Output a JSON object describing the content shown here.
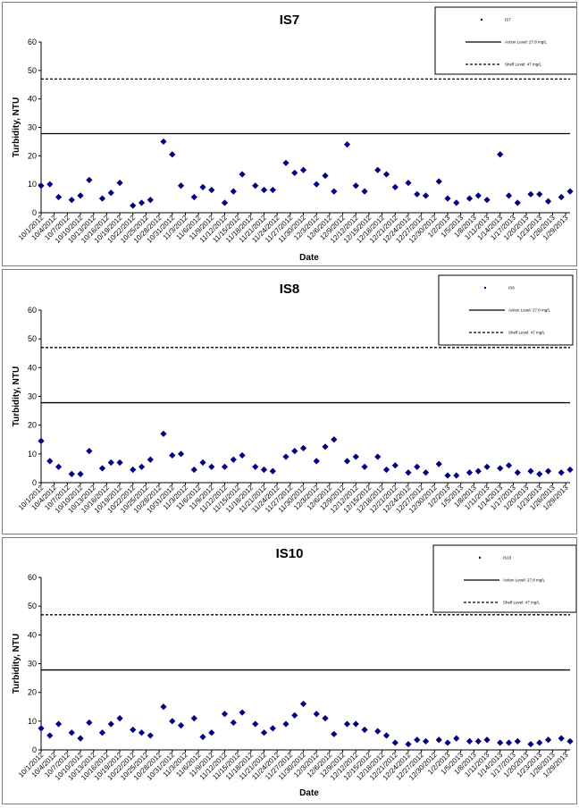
{
  "colors": {
    "marker": "#000080",
    "line": "#000000"
  },
  "dates": [
    "10/1/2012",
    "10/4/2012",
    "10/7/2012",
    "10/10/2012",
    "10/13/2012",
    "10/16/2012",
    "10/19/2012",
    "10/22/2012",
    "10/25/2012",
    "10/28/2012",
    "10/31/2012",
    "11/3/2012",
    "11/6/2012",
    "11/9/2012",
    "11/12/2012",
    "11/15/2012",
    "11/18/2012",
    "11/21/2012",
    "11/24/2012",
    "11/27/2012",
    "11/30/2012",
    "12/3/2012",
    "12/6/2012",
    "12/9/2012",
    "12/12/2012",
    "12/15/2012",
    "12/18/2012",
    "12/21/2012",
    "12/24/2012",
    "12/27/2012",
    "12/30/2012",
    "1/2/2013",
    "1/5/2013",
    "1/8/2013",
    "1/11/2013",
    "1/14/2013",
    "1/17/2013",
    "1/20/2013",
    "1/23/2013",
    "1/26/2013",
    "1/29/2013"
  ],
  "chart_data": [
    {
      "type": "scatter",
      "title": "IS7",
      "xlabel": "Date",
      "ylabel": "Turbidity, NTU",
      "ylim": [
        0,
        60
      ],
      "yticks": [
        0,
        10,
        20,
        30,
        40,
        50,
        60
      ],
      "xlim": [
        "10/1/2012",
        "1/30/2013"
      ],
      "grid": false,
      "legend_position": "top-right",
      "legend": [
        "IS7",
        "Action Level: 27.8 mg/L",
        "Shelf Level: 47 mg/L"
      ],
      "reference_lines": [
        {
          "name": "Action Level: 27.8 mg/L",
          "y": 27.8,
          "style": "solid"
        },
        {
          "name": "Shelf Level: 47 mg/L",
          "y": 47,
          "style": "dashed"
        }
      ],
      "series": [
        {
          "name": "IS7",
          "x": [
            "10/1/2012",
            "10/3/2012",
            "10/5/2012",
            "10/8/2012",
            "10/10/2012",
            "10/12/2012",
            "10/15/2012",
            "10/17/2012",
            "10/19/2012",
            "10/22/2012",
            "10/24/2012",
            "10/26/2012",
            "10/29/2012",
            "10/31/2012",
            "11/2/2012",
            "11/5/2012",
            "11/7/2012",
            "11/9/2012",
            "11/12/2012",
            "11/14/2012",
            "11/16/2012",
            "11/19/2012",
            "11/21/2012",
            "11/23/2012",
            "11/26/2012",
            "11/28/2012",
            "11/30/2012",
            "12/3/2012",
            "12/5/2012",
            "12/7/2012",
            "12/10/2012",
            "12/12/2012",
            "12/14/2012",
            "12/17/2012",
            "12/19/2012",
            "12/21/2012",
            "12/24/2012",
            "12/26/2012",
            "12/28/2012",
            "12/31/2012",
            "1/2/2013",
            "1/4/2013",
            "1/7/2013",
            "1/9/2013",
            "1/11/2013",
            "1/14/2013",
            "1/16/2013",
            "1/18/2013",
            "1/21/2013",
            "1/23/2013",
            "1/25/2013",
            "1/28/2013",
            "1/30/2013"
          ],
          "y": [
            9.5,
            10,
            5.5,
            4.5,
            6,
            11.5,
            5,
            7,
            10.5,
            2.5,
            3.5,
            4.5,
            25,
            20.5,
            9.5,
            5.5,
            9,
            8,
            3.5,
            7.5,
            13.5,
            9.5,
            8,
            8,
            17.5,
            14,
            15,
            10,
            13,
            7.5,
            24,
            9.5,
            7.5,
            15,
            13.5,
            9,
            10.5,
            6.5,
            6,
            11,
            5,
            3.5,
            5,
            6,
            4.5,
            20.5,
            6,
            3.5,
            6.5,
            6.5,
            4,
            5.5,
            7.5
          ]
        }
      ]
    },
    {
      "type": "scatter",
      "title": "IS8",
      "xlabel": "",
      "ylabel": "Turbidity, NTU",
      "ylim": [
        0,
        60
      ],
      "yticks": [
        0,
        10,
        20,
        30,
        40,
        50,
        60
      ],
      "xlim": [
        "10/1/2012",
        "1/30/2013"
      ],
      "grid": false,
      "legend_position": "top-right",
      "legend": [
        "IS8",
        "Action Level: 27.8 mg/L",
        "Shelf Level: 47 mg/L"
      ],
      "reference_lines": [
        {
          "name": "Action Level: 27.8 mg/L",
          "y": 27.8,
          "style": "solid"
        },
        {
          "name": "Shelf Level: 47 mg/L",
          "y": 47,
          "style": "dashed"
        }
      ],
      "series": [
        {
          "name": "IS8",
          "x": [
            "10/1/2012",
            "10/3/2012",
            "10/5/2012",
            "10/8/2012",
            "10/10/2012",
            "10/12/2012",
            "10/15/2012",
            "10/17/2012",
            "10/19/2012",
            "10/22/2012",
            "10/24/2012",
            "10/26/2012",
            "10/29/2012",
            "10/31/2012",
            "11/2/2012",
            "11/5/2012",
            "11/7/2012",
            "11/9/2012",
            "11/12/2012",
            "11/14/2012",
            "11/16/2012",
            "11/19/2012",
            "11/21/2012",
            "11/23/2012",
            "11/26/2012",
            "11/28/2012",
            "11/30/2012",
            "12/3/2012",
            "12/5/2012",
            "12/7/2012",
            "12/10/2012",
            "12/12/2012",
            "12/14/2012",
            "12/17/2012",
            "12/19/2012",
            "12/21/2012",
            "12/24/2012",
            "12/26/2012",
            "12/28/2012",
            "12/31/2012",
            "1/2/2013",
            "1/4/2013",
            "1/7/2013",
            "1/9/2013",
            "1/11/2013",
            "1/14/2013",
            "1/16/2013",
            "1/18/2013",
            "1/21/2013",
            "1/23/2013",
            "1/25/2013",
            "1/28/2013",
            "1/30/2013"
          ],
          "y": [
            14.5,
            7.5,
            5.5,
            3,
            3,
            11,
            5,
            7,
            7,
            4.5,
            5.5,
            8,
            17,
            9.5,
            10,
            4.5,
            7,
            5.5,
            5.5,
            8,
            9.5,
            5.5,
            4.5,
            4,
            9,
            11,
            12,
            7.5,
            12.5,
            15,
            7.5,
            9,
            5.5,
            9,
            4.5,
            6,
            3.5,
            5.5,
            3.5,
            6.5,
            2.5,
            2.5,
            3.5,
            4,
            5.5,
            5,
            6,
            3.5,
            4,
            3,
            4,
            3.5,
            4.5
          ]
        }
      ]
    },
    {
      "type": "scatter",
      "title": "IS10",
      "xlabel": "Date",
      "ylabel": "Turbidity, NTU",
      "ylim": [
        0,
        60
      ],
      "yticks": [
        0,
        10,
        20,
        30,
        40,
        50,
        60
      ],
      "xlim": [
        "10/1/2012",
        "1/30/2013"
      ],
      "grid": false,
      "legend_position": "top-right",
      "legend": [
        "IS10",
        "Action Level: 27.8 mg/L",
        "Shelf Level: 47 mg/L"
      ],
      "reference_lines": [
        {
          "name": "Action Level: 27.8 mg/L",
          "y": 27.8,
          "style": "solid"
        },
        {
          "name": "Shelf Level: 47 mg/L",
          "y": 47,
          "style": "dashed"
        }
      ],
      "series": [
        {
          "name": "IS10",
          "x": [
            "10/1/2012",
            "10/3/2012",
            "10/5/2012",
            "10/8/2012",
            "10/10/2012",
            "10/12/2012",
            "10/15/2012",
            "10/17/2012",
            "10/19/2012",
            "10/22/2012",
            "10/24/2012",
            "10/26/2012",
            "10/29/2012",
            "10/31/2012",
            "11/2/2012",
            "11/5/2012",
            "11/7/2012",
            "11/9/2012",
            "11/12/2012",
            "11/14/2012",
            "11/16/2012",
            "11/19/2012",
            "11/21/2012",
            "11/23/2012",
            "11/26/2012",
            "11/28/2012",
            "11/30/2012",
            "12/3/2012",
            "12/5/2012",
            "12/7/2012",
            "12/10/2012",
            "12/12/2012",
            "12/14/2012",
            "12/17/2012",
            "12/19/2012",
            "12/21/2012",
            "12/24/2012",
            "12/26/2012",
            "12/28/2012",
            "12/31/2012",
            "1/2/2013",
            "1/4/2013",
            "1/7/2013",
            "1/9/2013",
            "1/11/2013",
            "1/14/2013",
            "1/16/2013",
            "1/18/2013",
            "1/21/2013",
            "1/23/2013",
            "1/25/2013",
            "1/28/2013",
            "1/30/2013"
          ],
          "y": [
            7.5,
            5,
            9,
            6,
            4,
            9.5,
            6,
            9,
            11,
            7,
            6,
            5,
            15,
            10,
            8.5,
            11,
            4.5,
            6,
            12.5,
            9.5,
            13,
            9,
            6,
            7.5,
            9,
            12,
            16,
            12.5,
            11,
            5.5,
            9,
            9,
            7,
            6.5,
            5,
            2.5,
            2,
            3.5,
            3,
            3.5,
            2.5,
            4,
            3,
            3,
            3.5,
            2.5,
            2.5,
            3,
            2,
            2.5,
            3.5,
            4,
            3
          ]
        }
      ]
    }
  ]
}
